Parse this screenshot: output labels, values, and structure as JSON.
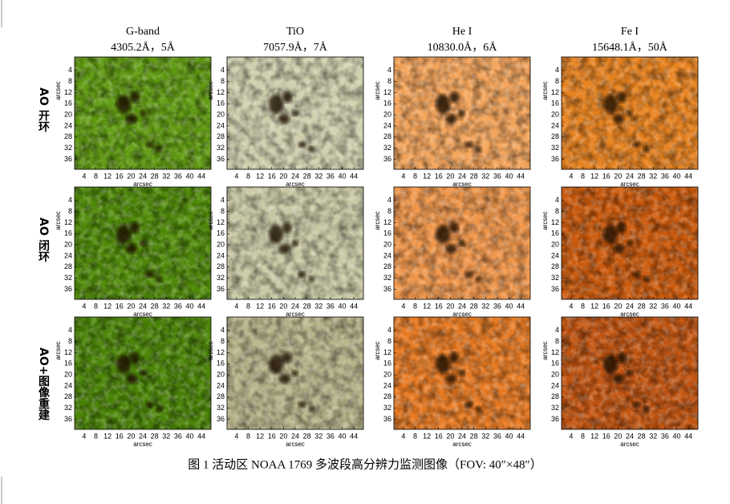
{
  "columns": [
    {
      "name": "G-band",
      "wavelength": "4305.2Å，5Å"
    },
    {
      "name": "TiO",
      "wavelength": "7057.9Å，7Å"
    },
    {
      "name": "He I",
      "wavelength": "10830.0Å，6Å"
    },
    {
      "name": "Fe I",
      "wavelength": "15648.1Å，50Å"
    }
  ],
  "rows": [
    "AO 开环",
    "AO 闭环",
    "AO+图像重建"
  ],
  "axis": {
    "x_label": "arcsec",
    "y_label": "arcsec",
    "xticks": [
      4,
      8,
      12,
      16,
      20,
      24,
      28,
      32,
      36,
      40,
      44
    ],
    "yticks": [
      4,
      8,
      12,
      16,
      20,
      24,
      28,
      32,
      36
    ]
  },
  "caption": "图 1  活动区 NOAA 1769 多波段高分辨力监测图像（FOV: 40″×48″）"
}
